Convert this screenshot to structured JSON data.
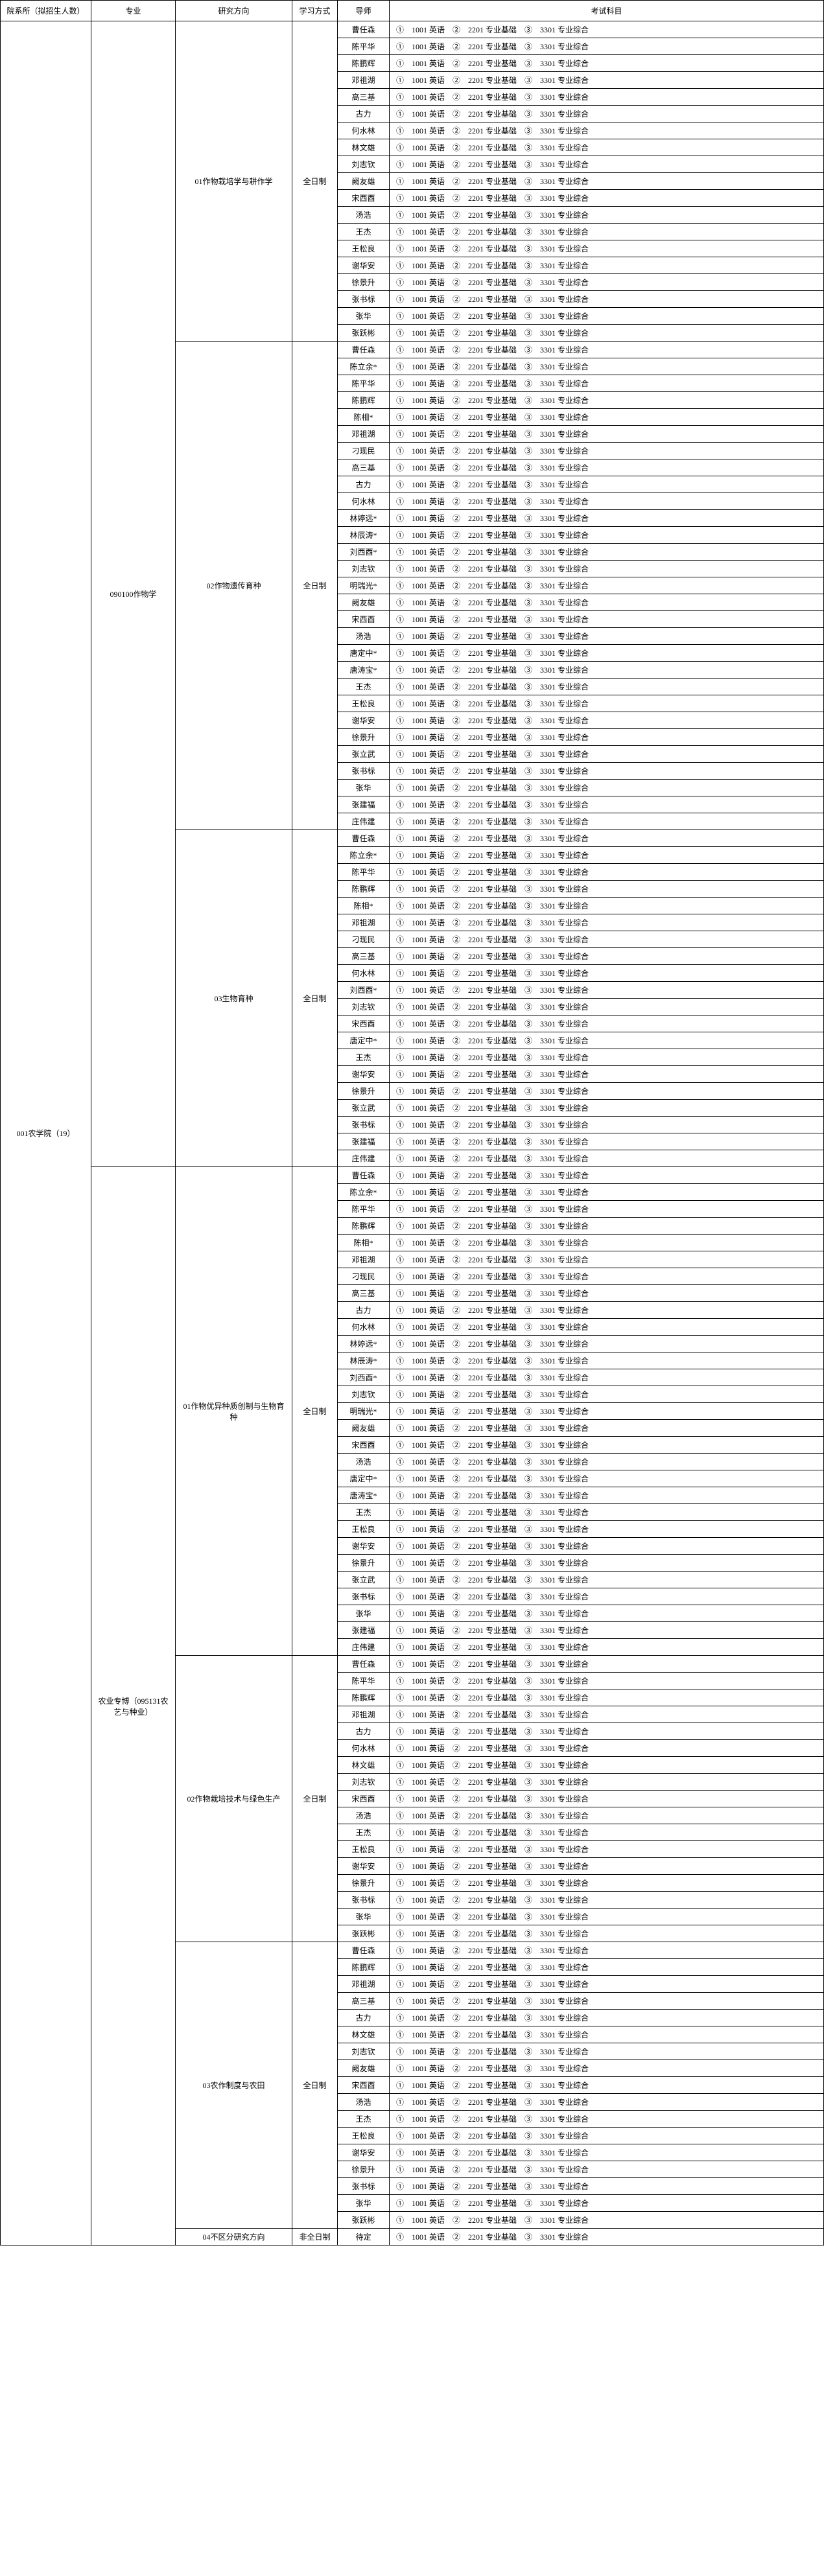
{
  "headers": {
    "dept": "院系所（拟招生人数）",
    "major": "专业",
    "direction": "研究方向",
    "mode": "学习方式",
    "advisor": "导师",
    "exam": "考试科目"
  },
  "exam_text": "①　1001 英语　②　2201 专业基础　③　3301 专业综合",
  "dept": "001农学院（19）",
  "majors": [
    {
      "name": "090100作物学",
      "directions": [
        {
          "name": "01作物栽培学与耕作学",
          "mode": "全日制",
          "advisors": [
            "曹任森",
            "陈平华",
            "陈鹏辉",
            "邓祖湖",
            "高三基",
            "古力",
            "何水林",
            "林文雄",
            "刘志钦",
            "阙友雄",
            "宋西酉",
            "汤浩",
            "王杰",
            "王松良",
            "谢华安",
            "徐景升",
            "张书标",
            "张华",
            "张跃彬"
          ]
        },
        {
          "name": "02作物遗传育种",
          "mode": "全日制",
          "advisors": [
            "曹任森",
            "陈立余*",
            "陈平华",
            "陈鹏辉",
            "陈相*",
            "邓祖湖",
            "刁现民",
            "高三基",
            "古力",
            "何水林",
            "林婷远*",
            "林辰涛*",
            "刘西酉*",
            "刘志钦",
            "明瑞光*",
            "阙友雄",
            "宋西酉",
            "汤浩",
            "唐定中*",
            "唐涛宝*",
            "王杰",
            "王松良",
            "谢华安",
            "徐景升",
            "张立武",
            "张书标",
            "张华",
            "张建福",
            "庄伟建"
          ]
        },
        {
          "name": "03生物育种",
          "mode": "全日制",
          "advisors": [
            "曹任森",
            "陈立余*",
            "陈平华",
            "陈鹏辉",
            "陈相*",
            "邓祖湖",
            "刁现民",
            "高三基",
            "何水林",
            "刘西酉*",
            "刘志钦",
            "宋西酉",
            "唐定中*",
            "王杰",
            "谢华安",
            "徐景升",
            "张立武",
            "张书标",
            "张建福",
            "庄伟建"
          ]
        }
      ]
    },
    {
      "name": "农业专博（095131农艺与种业）",
      "directions": [
        {
          "name": "01作物优异种质创制与生物育种",
          "mode": "全日制",
          "advisors": [
            "曹任森",
            "陈立余*",
            "陈平华",
            "陈鹏辉",
            "陈相*",
            "邓祖湖",
            "刁现民",
            "高三基",
            "古力",
            "何水林",
            "林婷远*",
            "林辰涛*",
            "刘西酉*",
            "刘志钦",
            "明瑞光*",
            "阙友雄",
            "宋西酉",
            "汤浩",
            "唐定中*",
            "唐涛宝*",
            "王杰",
            "王松良",
            "谢华安",
            "徐景升",
            "张立武",
            "张书标",
            "张华",
            "张建福",
            "庄伟建"
          ]
        },
        {
          "name": "02作物栽培技术与绿色生产",
          "mode": "全日制",
          "advisors": [
            "曹任森",
            "陈平华",
            "陈鹏辉",
            "邓祖湖",
            "古力",
            "何水林",
            "林文雄",
            "刘志钦",
            "宋西酉",
            "汤浩",
            "王杰",
            "王松良",
            "谢华安",
            "徐景升",
            "张书标",
            "张华",
            "张跃彬"
          ]
        },
        {
          "name": "03农作制度与农田",
          "mode": "全日制",
          "advisors": [
            "曹任森",
            "陈鹏辉",
            "邓祖湖",
            "高三基",
            "古力",
            "林文雄",
            "刘志钦",
            "阙友雄",
            "宋西酉",
            "汤浩",
            "王杰",
            "王松良",
            "谢华安",
            "徐景升",
            "张书标",
            "张华",
            "张跃彬"
          ]
        },
        {
          "name": "04不区分研究方向",
          "mode": "非全日制",
          "advisors": [
            "待定"
          ]
        }
      ]
    }
  ]
}
